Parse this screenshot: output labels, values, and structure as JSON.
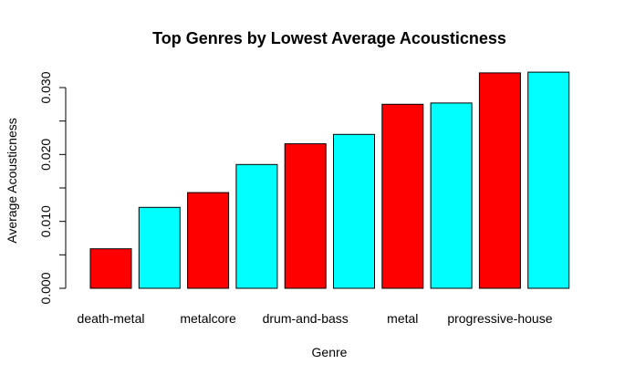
{
  "chart_data": {
    "type": "bar",
    "title": "Top Genres by Lowest Average Acousticness",
    "xlabel": "Genre",
    "ylabel": "Average Acousticness",
    "categories": [
      "death-metal",
      "",
      "metalcore",
      "",
      "drum-and-bass",
      "",
      "metal",
      "",
      "progressive-house",
      ""
    ],
    "values": [
      0.0059,
      0.0121,
      0.0143,
      0.0185,
      0.0216,
      0.023,
      0.0275,
      0.0277,
      0.0322,
      0.0323
    ],
    "bar_colors": [
      "#ff0000",
      "#00ffff",
      "#ff0000",
      "#00ffff",
      "#ff0000",
      "#00ffff",
      "#ff0000",
      "#00ffff",
      "#ff0000",
      "#00ffff"
    ],
    "ylim": [
      0,
      0.03
    ],
    "yticks": [
      0.0,
      0.01,
      0.02,
      0.03
    ],
    "ytick_labels": [
      "0.000",
      "0.010",
      "0.020",
      "0.030"
    ],
    "grid": false,
    "legend": "none"
  }
}
